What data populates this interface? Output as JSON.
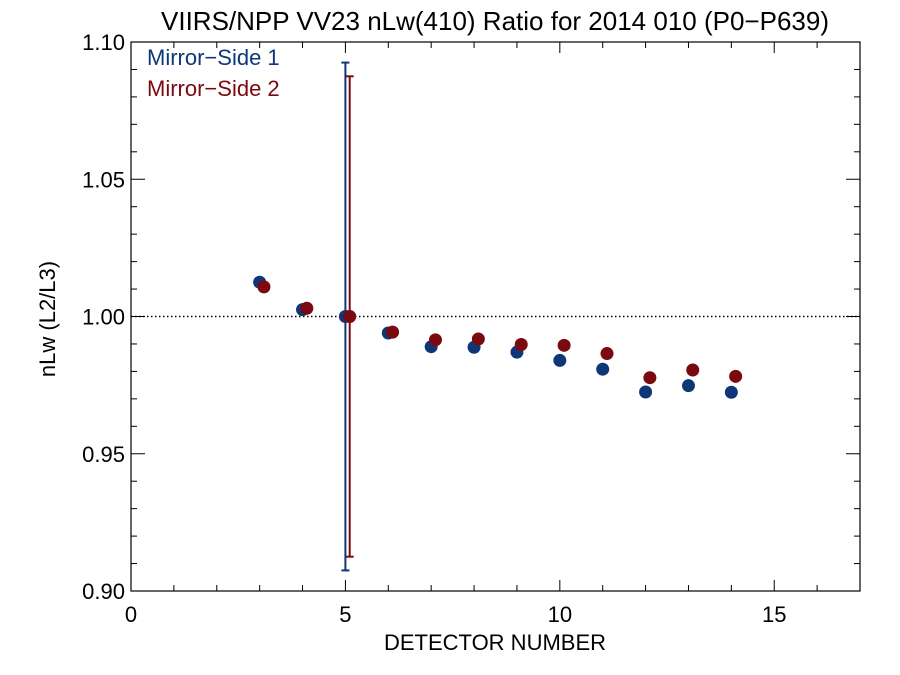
{
  "colors": {
    "series1": "#0d3777",
    "series2": "#7a0a10",
    "axis": "#000000",
    "background": "#ffffff"
  },
  "chart_data": {
    "type": "scatter",
    "title": "VIIRS/NPP VV23 nLw(410) Ratio for 2014 010 (P0−P639)",
    "xlabel": "DETECTOR NUMBER",
    "ylabel": "nLw (L2/L3)",
    "xlim": [
      0,
      17
    ],
    "ylim": [
      0.9,
      1.1
    ],
    "xticks": [
      0,
      5,
      10,
      15
    ],
    "yticks": [
      0.9,
      0.95,
      1.0,
      1.05,
      1.1
    ],
    "xtick_labels": [
      "0",
      "5",
      "10",
      "15"
    ],
    "ytick_labels": [
      "0.90",
      "0.95",
      "1.00",
      "1.05",
      "1.10"
    ],
    "reference_line": {
      "y": 1.0,
      "style": "dotted"
    },
    "legend_position": "top-left",
    "series": [
      {
        "name": "Mirror−Side 1",
        "color": "#0d3777",
        "x": [
          3,
          4,
          5,
          6,
          7,
          8,
          9,
          10,
          11,
          12,
          13,
          14
        ],
        "y": [
          1.0125,
          1.0025,
          1.0,
          0.994,
          0.989,
          0.9888,
          0.987,
          0.984,
          0.9808,
          0.9725,
          0.9748,
          0.9724
        ],
        "error_bar": {
          "x": 5,
          "low": 0.9075,
          "high": 1.0925
        }
      },
      {
        "name": "Mirror−Side 2",
        "color": "#7a0a10",
        "x": [
          3.1,
          4.1,
          5.1,
          6.1,
          7.1,
          8.1,
          9.1,
          10.1,
          11.1,
          12.1,
          13.1,
          14.1
        ],
        "y": [
          1.0108,
          1.003,
          1.0,
          0.9943,
          0.9915,
          0.9918,
          0.9898,
          0.9895,
          0.9865,
          0.9777,
          0.9805,
          0.9782
        ],
        "error_bar": {
          "x": 5.1,
          "low": 0.9125,
          "high": 1.0875
        }
      }
    ]
  }
}
